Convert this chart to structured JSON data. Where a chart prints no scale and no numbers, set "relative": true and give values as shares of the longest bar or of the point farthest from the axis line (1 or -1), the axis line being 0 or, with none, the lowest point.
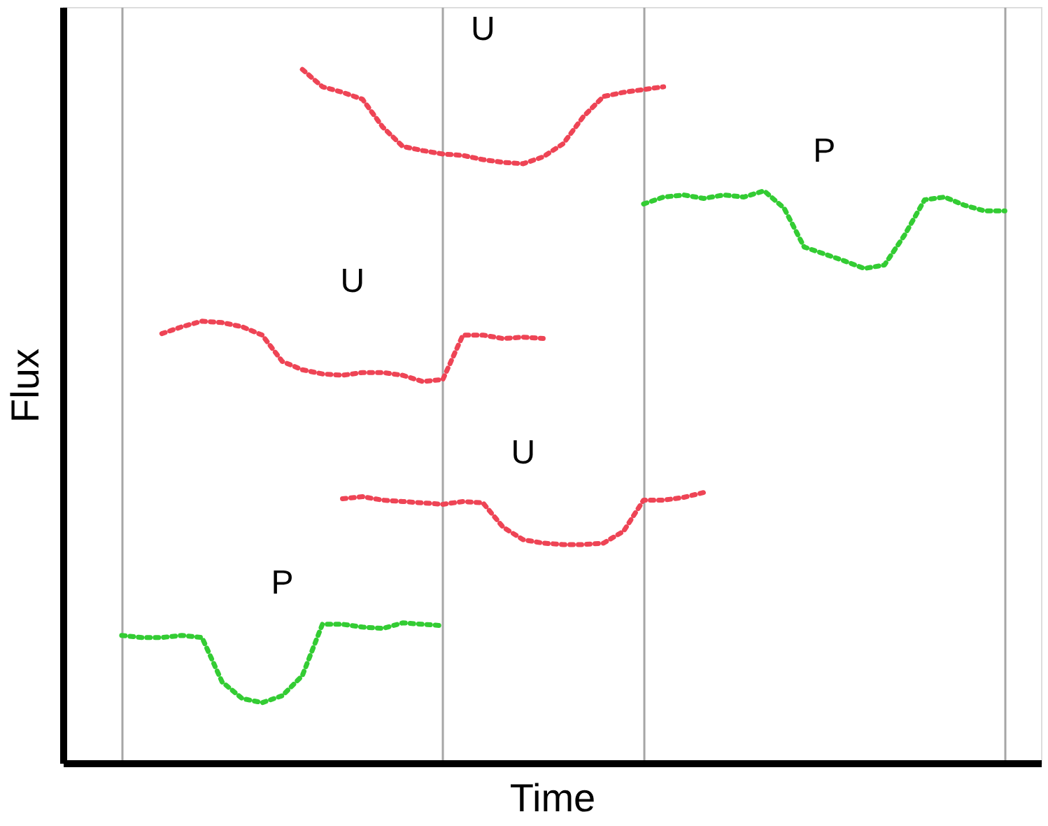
{
  "chart_data": {
    "type": "line",
    "xlabel": "Time",
    "ylabel": "Flux",
    "relative": true,
    "line_style": "dotted",
    "categories": [
      null,
      null,
      null,
      null,
      null,
      null,
      null,
      null,
      null,
      null,
      null,
      null,
      null,
      null,
      null,
      null,
      null,
      null,
      null,
      null,
      null,
      null,
      null,
      null,
      null,
      null,
      null,
      null,
      null,
      null,
      null,
      null,
      null,
      null,
      null,
      null,
      null,
      null,
      null,
      null,
      null,
      null,
      null,
      null,
      null
    ],
    "series": [
      {
        "color": "#ee4455",
        "values": [
          null,
          null,
          null,
          null,
          null,
          null,
          null,
          null,
          null,
          1.0,
          0.975,
          0.967,
          0.957,
          0.917,
          0.889,
          0.883,
          0.878,
          0.876,
          0.87,
          0.866,
          0.864,
          0.874,
          0.893,
          0.932,
          0.961,
          0.967,
          0.971,
          0.975,
          null,
          null,
          null,
          null,
          null,
          null,
          null,
          null,
          null,
          null,
          null,
          null,
          null,
          null,
          null,
          null,
          null
        ]
      },
      {
        "color": "#33cc33",
        "values": [
          null,
          null,
          null,
          null,
          null,
          null,
          null,
          null,
          null,
          null,
          null,
          null,
          null,
          null,
          null,
          null,
          null,
          null,
          null,
          null,
          null,
          null,
          null,
          null,
          null,
          null,
          0.806,
          0.816,
          0.819,
          0.814,
          0.819,
          0.816,
          0.825,
          0.8,
          0.744,
          0.734,
          0.724,
          0.713,
          0.718,
          0.761,
          0.812,
          0.816,
          0.804,
          0.796,
          0.796
        ]
      },
      {
        "color": "#ee4455",
        "values": [
          null,
          null,
          0.619,
          0.629,
          0.637,
          0.635,
          0.629,
          0.617,
          0.579,
          0.567,
          0.561,
          0.559,
          0.563,
          0.563,
          0.559,
          0.55,
          0.553,
          0.617,
          0.617,
          0.612,
          0.614,
          0.612,
          null,
          null,
          null,
          null,
          null,
          null,
          null,
          null,
          null,
          null,
          null,
          null,
          null,
          null,
          null,
          null,
          null,
          null,
          null,
          null,
          null,
          null,
          null
        ]
      },
      {
        "color": "#ee4455",
        "values": [
          null,
          null,
          null,
          null,
          null,
          null,
          null,
          null,
          null,
          null,
          null,
          0.381,
          0.384,
          0.379,
          0.377,
          0.375,
          0.373,
          0.377,
          0.375,
          0.34,
          0.322,
          0.317,
          0.315,
          0.315,
          0.317,
          0.334,
          0.379,
          0.379,
          0.383,
          0.39,
          null,
          null,
          null,
          null,
          null,
          null,
          null,
          null,
          null,
          null,
          null,
          null,
          null,
          null,
          null
        ]
      },
      {
        "color": "#33cc33",
        "values": [
          0.184,
          0.181,
          0.181,
          0.184,
          0.181,
          0.117,
          0.093,
          0.087,
          0.097,
          0.126,
          0.2,
          0.2,
          0.196,
          0.194,
          0.202,
          0.2,
          0.198,
          null,
          null,
          null,
          null,
          null,
          null,
          null,
          null,
          null,
          null,
          null,
          null,
          null,
          null,
          null,
          null,
          null,
          null,
          null,
          null,
          null,
          null,
          null,
          null,
          null,
          null,
          null,
          null
        ]
      }
    ],
    "grid": "x",
    "annotations": [
      "U",
      "P",
      "U",
      "U",
      "P"
    ]
  }
}
